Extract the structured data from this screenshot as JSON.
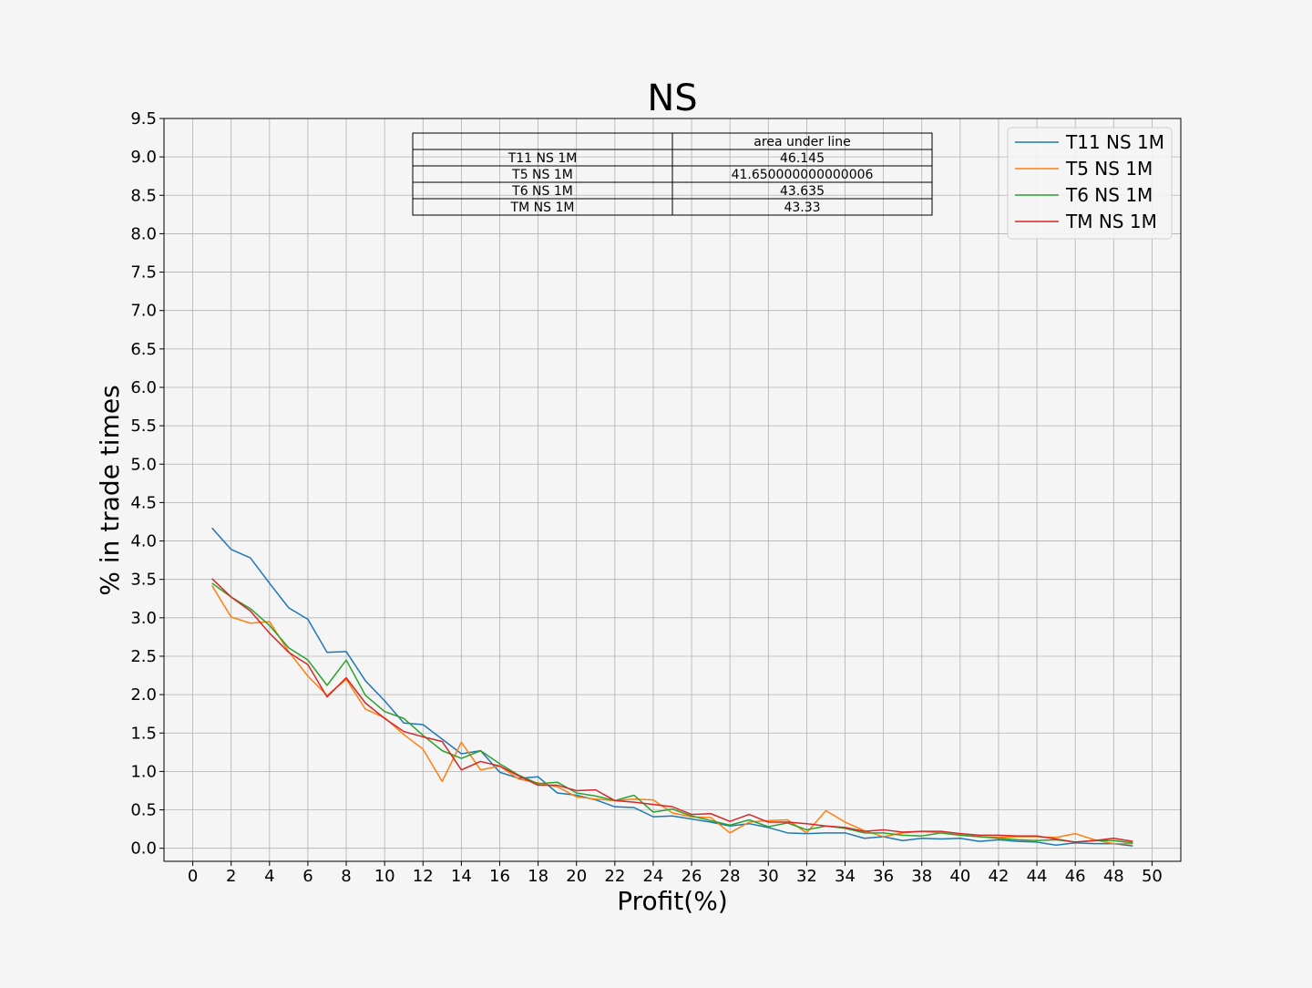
{
  "chart_data": {
    "type": "line",
    "title": "NS",
    "xlabel": "Profit(%)",
    "ylabel": "% in trade times",
    "xlim": [
      -1.5,
      51.5
    ],
    "ylim": [
      -0.17,
      9.5
    ],
    "xticks": [
      0,
      2,
      4,
      6,
      8,
      10,
      12,
      14,
      16,
      18,
      20,
      22,
      24,
      26,
      28,
      30,
      32,
      34,
      36,
      38,
      40,
      42,
      44,
      46,
      48,
      50
    ],
    "yticks": [
      0.0,
      0.5,
      1.0,
      1.5,
      2.0,
      2.5,
      3.0,
      3.5,
      4.0,
      4.5,
      5.0,
      5.5,
      6.0,
      6.5,
      7.0,
      7.5,
      8.0,
      8.5,
      9.0,
      9.5
    ],
    "grid": true,
    "legend_position": "upper right",
    "x": [
      1,
      2,
      3,
      4,
      5,
      6,
      7,
      8,
      9,
      10,
      11,
      12,
      13,
      14,
      15,
      16,
      17,
      18,
      19,
      20,
      21,
      22,
      23,
      24,
      25,
      26,
      27,
      28,
      29,
      30,
      31,
      32,
      33,
      34,
      35,
      36,
      37,
      38,
      39,
      40,
      41,
      42,
      43,
      44,
      45,
      46,
      47,
      48,
      49
    ],
    "series": [
      {
        "name": "T11 NS 1M",
        "color": "#1f77b4",
        "values": [
          4.17,
          3.89,
          3.78,
          3.45,
          3.13,
          2.98,
          2.55,
          2.56,
          2.18,
          1.92,
          1.63,
          1.61,
          1.42,
          1.23,
          1.27,
          0.99,
          0.91,
          0.93,
          0.72,
          0.69,
          0.63,
          0.54,
          0.53,
          0.41,
          0.42,
          0.38,
          0.34,
          0.29,
          0.32,
          0.27,
          0.2,
          0.19,
          0.2,
          0.2,
          0.13,
          0.15,
          0.1,
          0.13,
          0.12,
          0.13,
          0.09,
          0.11,
          0.09,
          0.08,
          0.04,
          0.07,
          0.06,
          0.06,
          0.03
        ]
      },
      {
        "name": "T5 NS 1M",
        "color": "#ff7f0e",
        "values": [
          3.42,
          3.01,
          2.93,
          2.95,
          2.56,
          2.24,
          1.99,
          2.2,
          1.81,
          1.7,
          1.48,
          1.29,
          0.87,
          1.38,
          1.02,
          1.07,
          0.9,
          0.85,
          0.8,
          0.67,
          0.64,
          0.62,
          0.64,
          0.63,
          0.46,
          0.41,
          0.4,
          0.2,
          0.34,
          0.36,
          0.37,
          0.2,
          0.49,
          0.34,
          0.23,
          0.15,
          0.2,
          0.22,
          0.2,
          0.17,
          0.15,
          0.14,
          0.15,
          0.15,
          0.14,
          0.19,
          0.11,
          0.06,
          0.06
        ]
      },
      {
        "name": "T6 NS 1M",
        "color": "#2ca02c",
        "values": [
          3.45,
          3.27,
          3.12,
          2.9,
          2.61,
          2.45,
          2.12,
          2.45,
          1.99,
          1.78,
          1.69,
          1.47,
          1.27,
          1.17,
          1.27,
          1.1,
          0.95,
          0.84,
          0.86,
          0.72,
          0.68,
          0.62,
          0.69,
          0.47,
          0.51,
          0.42,
          0.36,
          0.3,
          0.37,
          0.28,
          0.33,
          0.24,
          0.29,
          0.26,
          0.2,
          0.2,
          0.17,
          0.16,
          0.2,
          0.17,
          0.15,
          0.13,
          0.11,
          0.1,
          0.11,
          0.08,
          0.1,
          0.1,
          0.07
        ]
      },
      {
        "name": "TM NS 1M",
        "color": "#d62728",
        "values": [
          3.51,
          3.27,
          3.09,
          2.8,
          2.55,
          2.39,
          1.97,
          2.22,
          1.89,
          1.69,
          1.52,
          1.45,
          1.39,
          1.02,
          1.13,
          1.07,
          0.94,
          0.82,
          0.82,
          0.75,
          0.76,
          0.62,
          0.6,
          0.57,
          0.54,
          0.44,
          0.45,
          0.35,
          0.44,
          0.34,
          0.34,
          0.32,
          0.29,
          0.27,
          0.22,
          0.24,
          0.21,
          0.22,
          0.22,
          0.19,
          0.17,
          0.17,
          0.16,
          0.16,
          0.12,
          0.08,
          0.1,
          0.13,
          0.09
        ]
      }
    ],
    "table": {
      "header": [
        "",
        "area under line"
      ],
      "rows": [
        [
          "T11 NS 1M",
          "46.145"
        ],
        [
          "T5 NS 1M",
          "41.650000000000006"
        ],
        [
          "T6 NS 1M",
          "43.635"
        ],
        [
          "TM NS 1M",
          "43.33"
        ]
      ]
    }
  }
}
